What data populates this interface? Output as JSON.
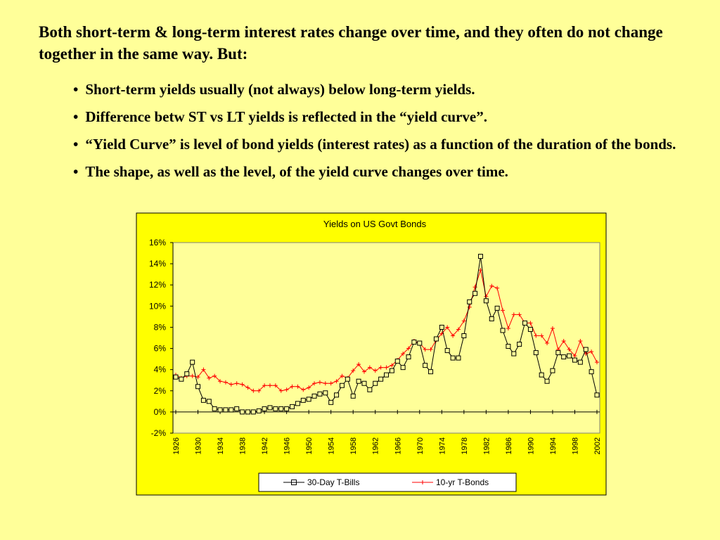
{
  "slide": {
    "intro": "Both short-term & long-term interest rates change over time, and they often do not change together in the same way. But:",
    "bullets": [
      "Short-term yields usually (not always) below long-term yields.",
      "Difference betw ST vs LT yields is reflected in the “yield curve”.",
      "“Yield Curve” is level of bond yields (interest rates) as a function of the duration of the bonds.",
      "The shape, as well as the level, of the yield curve changes over time."
    ],
    "bullet_marker": "•"
  },
  "colors": {
    "background": "#FFFF99",
    "chart_background": "#FFFF00",
    "tbill_series": "#000000",
    "tbond_series": "#FF0000"
  },
  "chart_data": {
    "type": "line",
    "title": "Yields on US Govt Bonds",
    "xlabel": "",
    "ylabel": "",
    "ylim": [
      -2,
      16
    ],
    "y_ticks": [
      "-2%",
      "0%",
      "2%",
      "4%",
      "6%",
      "8%",
      "10%",
      "12%",
      "14%",
      "16%"
    ],
    "x_ticks": [
      "1926",
      "1930",
      "1934",
      "1938",
      "1942",
      "1946",
      "1950",
      "1954",
      "1958",
      "1962",
      "1966",
      "1970",
      "1974",
      "1978",
      "1982",
      "1986",
      "1990",
      "1994",
      "1998",
      "2002"
    ],
    "grid": false,
    "legend_position": "bottom",
    "x": [
      1926,
      1927,
      1928,
      1929,
      1930,
      1931,
      1932,
      1933,
      1934,
      1935,
      1936,
      1937,
      1938,
      1939,
      1940,
      1941,
      1942,
      1943,
      1944,
      1945,
      1946,
      1947,
      1948,
      1949,
      1950,
      1951,
      1952,
      1953,
      1954,
      1955,
      1956,
      1957,
      1958,
      1959,
      1960,
      1961,
      1962,
      1963,
      1964,
      1965,
      1966,
      1967,
      1968,
      1969,
      1970,
      1971,
      1972,
      1973,
      1974,
      1975,
      1976,
      1977,
      1978,
      1979,
      1980,
      1981,
      1982,
      1983,
      1984,
      1985,
      1986,
      1987,
      1988,
      1989,
      1990,
      1991,
      1992,
      1993,
      1994,
      1995,
      1996,
      1997,
      1998,
      1999,
      2000,
      2001,
      2002
    ],
    "series": [
      {
        "name": "30-Day T-Bills",
        "marker": "square",
        "values": [
          3.3,
          3.1,
          3.6,
          4.7,
          2.4,
          1.1,
          1.0,
          0.3,
          0.2,
          0.2,
          0.2,
          0.3,
          0.0,
          0.0,
          0.0,
          0.1,
          0.3,
          0.4,
          0.3,
          0.3,
          0.3,
          0.5,
          0.8,
          1.1,
          1.2,
          1.5,
          1.7,
          1.8,
          0.9,
          1.6,
          2.5,
          3.1,
          1.5,
          2.9,
          2.7,
          2.1,
          2.7,
          3.1,
          3.5,
          3.9,
          4.8,
          4.2,
          5.2,
          6.6,
          6.5,
          4.4,
          3.8,
          6.9,
          8.0,
          5.8,
          5.1,
          5.1,
          7.2,
          10.4,
          11.2,
          14.7,
          10.5,
          8.8,
          9.8,
          7.7,
          6.2,
          5.5,
          6.4,
          8.4,
          7.8,
          5.6,
          3.5,
          2.9,
          3.9,
          5.6,
          5.2,
          5.3,
          4.9,
          4.7,
          5.9,
          3.8,
          1.6
        ]
      },
      {
        "name": "10-yr T-Bonds",
        "marker": "plus",
        "values": [
          3.5,
          3.2,
          3.4,
          3.4,
          3.3,
          4.0,
          3.2,
          3.4,
          2.9,
          2.8,
          2.6,
          2.7,
          2.6,
          2.3,
          2.0,
          2.0,
          2.5,
          2.5,
          2.5,
          2.0,
          2.1,
          2.4,
          2.4,
          2.1,
          2.3,
          2.7,
          2.8,
          2.7,
          2.7,
          2.9,
          3.4,
          3.2,
          3.9,
          4.5,
          3.8,
          4.2,
          3.9,
          4.2,
          4.2,
          4.4,
          4.9,
          5.5,
          6.0,
          6.7,
          6.5,
          5.9,
          5.9,
          6.8,
          7.4,
          8.0,
          7.2,
          7.8,
          8.6,
          9.9,
          11.8,
          13.4,
          10.9,
          11.9,
          11.7,
          9.6,
          7.9,
          9.2,
          9.2,
          8.4,
          8.4,
          7.2,
          7.2,
          6.5,
          7.9,
          5.9,
          6.7,
          5.9,
          5.3,
          6.7,
          5.5,
          5.7,
          4.7
        ]
      }
    ]
  }
}
